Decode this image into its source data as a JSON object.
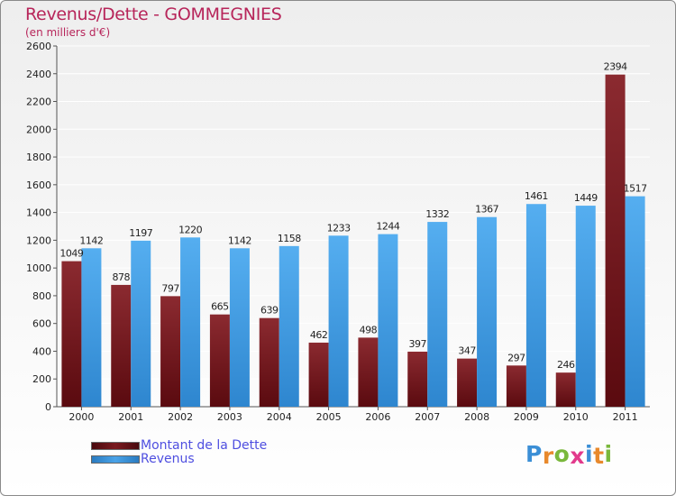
{
  "title": "Revenus/Dette - GOMMEGNIES",
  "subtitle": "(en milliers d'€)",
  "logo": {
    "text": "Proxiti",
    "letter_colors": [
      "#3b8fd6",
      "#e8892c",
      "#7ab83c",
      "#e23a8c",
      "#3b8fd6",
      "#e8892c",
      "#7ab83c"
    ]
  },
  "colors": {
    "dette": "#7a1a1f",
    "revenus": "#4aa3e8"
  },
  "chart_data": {
    "type": "bar",
    "categories": [
      "2000",
      "2001",
      "2002",
      "2003",
      "2004",
      "2005",
      "2006",
      "2007",
      "2008",
      "2009",
      "2010",
      "2011"
    ],
    "series": [
      {
        "name": "Montant de la Dette",
        "values": [
          1049,
          878,
          797,
          665,
          639,
          462,
          498,
          397,
          347,
          297,
          246,
          2394
        ]
      },
      {
        "name": "Revenus",
        "values": [
          1142,
          1197,
          1220,
          1142,
          1158,
          1233,
          1244,
          1332,
          1367,
          1461,
          1449,
          1517
        ]
      }
    ],
    "data_labels": {
      "dette": [
        "1049",
        "878",
        "797",
        "665",
        "639",
        "462",
        "498",
        "397",
        "347",
        "297",
        "246",
        "2394"
      ],
      "revenus": [
        "1142",
        "1197",
        "1220",
        "1142",
        "1158",
        "1233",
        "1244",
        "1332",
        "1367",
        "1461",
        "1449",
        "1517"
      ]
    },
    "ylim": [
      0,
      2600
    ],
    "yticks": [
      0,
      200,
      400,
      600,
      800,
      1000,
      1200,
      1400,
      1600,
      1800,
      2000,
      2200,
      2400,
      2600
    ],
    "ytick_labels": [
      "0",
      "200",
      "400",
      "600",
      "800",
      "1000",
      "1200",
      "1400",
      "1600",
      "1800",
      "2000",
      "2200",
      "2400",
      "2600"
    ],
    "grid": true,
    "legend_position": "bottom-left"
  }
}
